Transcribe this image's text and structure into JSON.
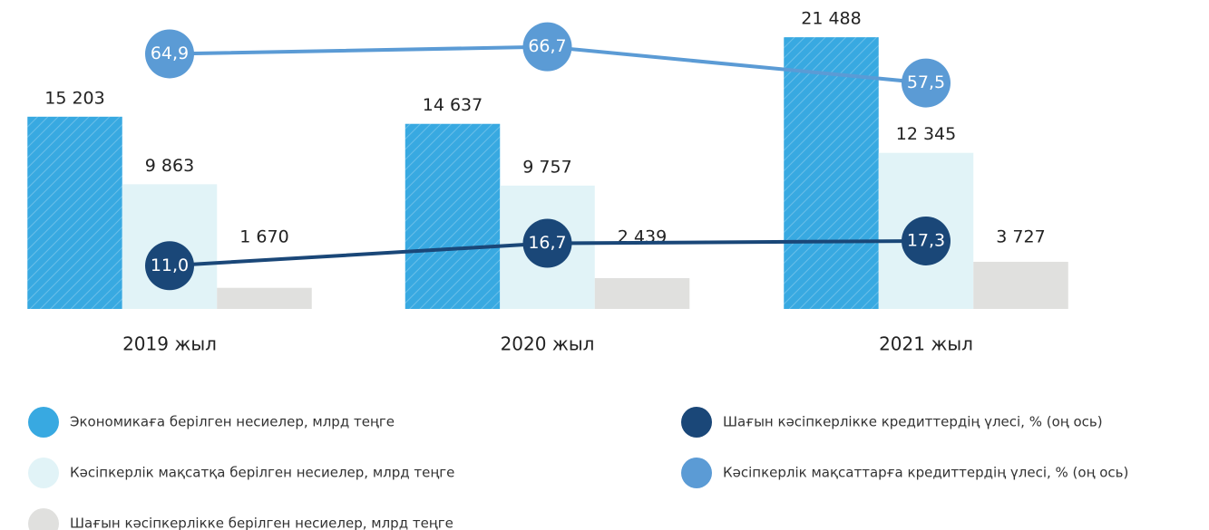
{
  "chart_data": {
    "type": "bar",
    "categories": [
      "2019 жыл",
      "2020 жыл",
      "2021 жыл"
    ],
    "ylim": [
      0,
      23000
    ],
    "y2lim": [
      0,
      74
    ],
    "series": [
      {
        "name": "Экономикаға берілген несиелер, млрд теңге",
        "color": "#38a9e1",
        "values": [
          15203,
          14637,
          21488
        ],
        "value_labels": [
          "15 203",
          "14 637",
          "21 488"
        ]
      },
      {
        "name": "Кәсіпкерлік мақсатқа берілген несиелер, млрд теңге",
        "color": "#e1f3f7",
        "values": [
          9863,
          9757,
          12345
        ],
        "value_labels": [
          "9 863",
          "9 757",
          "12 345"
        ]
      },
      {
        "name": "Шағын кәсіпкерлікке берілген несиелер, млрд теңге",
        "color": "#e0e0de",
        "values": [
          1670,
          2439,
          3727
        ],
        "value_labels": [
          "1 670",
          "2 439",
          "3 727"
        ]
      },
      {
        "name": "Шағын кәсіпкерлікке кредиттердің үлесі, % (оң ось)",
        "color": "#1a4778",
        "type": "line",
        "axis": "y2",
        "values": [
          11.0,
          16.7,
          17.3
        ],
        "value_labels": [
          "11,0",
          "16,7",
          "17,3"
        ]
      },
      {
        "name": "Кәсіпкерлік мақсаттарға кредиттердің үлесі, % (оң ось)",
        "color": "#5b9bd5",
        "type": "line",
        "axis": "y2",
        "values": [
          64.9,
          66.7,
          57.5
        ],
        "value_labels": [
          "64,9",
          "66,7",
          "57,5"
        ]
      }
    ]
  }
}
